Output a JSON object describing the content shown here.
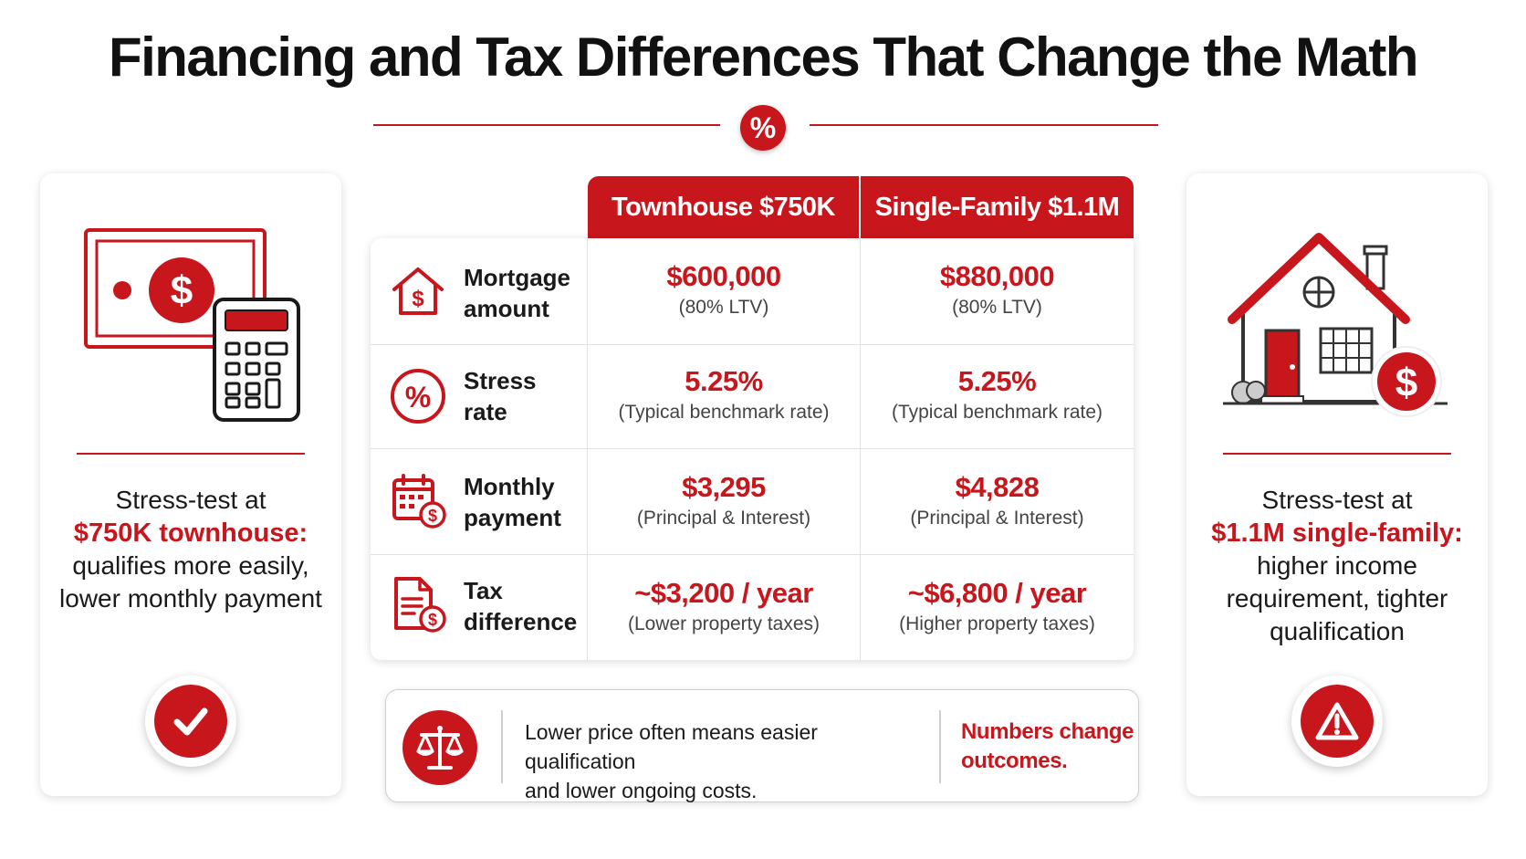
{
  "title": "Financing and Tax Differences That Change the Math",
  "title_badge": "%",
  "colors": {
    "accent": "#c8161d",
    "text": "#1a1a1a",
    "muted": "#444444"
  },
  "left_card": {
    "icon": "cash-calculator-icon",
    "desc_line1": "Stress-test at",
    "highlight": "$750K townhouse:",
    "desc_line2": "qualifies more easily,",
    "desc_line3": "lower monthly payment",
    "badge_icon": "check-icon"
  },
  "right_card": {
    "icon": "house-dollar-icon",
    "desc_line1": "Stress-test at",
    "highlight": "$1.1M single-family:",
    "desc_line2": "higher income",
    "desc_line3": "requirement, tighter",
    "desc_line4": "qualification",
    "badge_icon": "warning-icon"
  },
  "table": {
    "columns": [
      "Townhouse $750K",
      "Single-Family $1.1M"
    ],
    "rows": [
      {
        "icon": "house-dollar-outline-icon",
        "label_line1": "Mortgage",
        "label_line2": "amount",
        "values": [
          {
            "main": "$600,000",
            "sub": "(80% LTV)"
          },
          {
            "main": "$880,000",
            "sub": "(80% LTV)"
          }
        ]
      },
      {
        "icon": "percent-circle-icon",
        "label_line1": "Stress",
        "label_line2": "rate",
        "values": [
          {
            "main": "5.25%",
            "sub": "(Typical benchmark rate)"
          },
          {
            "main": "5.25%",
            "sub": "(Typical benchmark rate)"
          }
        ]
      },
      {
        "icon": "calendar-dollar-icon",
        "label_line1": "Monthly",
        "label_line2": "payment",
        "values": [
          {
            "main": "$3,295",
            "sub": "(Principal & Interest)"
          },
          {
            "main": "$4,828",
            "sub": "(Principal & Interest)"
          }
        ]
      },
      {
        "icon": "document-dollar-icon",
        "label_line1": "Tax",
        "label_line2": "difference",
        "values": [
          {
            "main": "~$3,200 / year",
            "sub": "(Lower property taxes)"
          },
          {
            "main": "~$6,800 / year",
            "sub": "(Higher property taxes)"
          }
        ]
      }
    ]
  },
  "bottom": {
    "icon": "scale-icon",
    "msg_line1": "Lower price often means easier qualification",
    "msg_line2": "and lower ongoing costs.",
    "callout_line1": "Numbers change",
    "callout_line2": "outcomes."
  }
}
